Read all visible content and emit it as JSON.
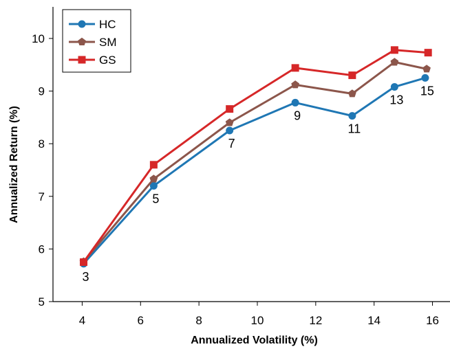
{
  "chart_data": {
    "type": "line",
    "title": "",
    "xlabel": "Annualized Volatility (%)",
    "ylabel": "Annualized Return (%)",
    "xlim": [
      3,
      16.6
    ],
    "ylim": [
      5,
      10.6
    ],
    "xticks": [
      4,
      6,
      8,
      10,
      12,
      14,
      16
    ],
    "yticks": [
      5,
      6,
      7,
      8,
      9,
      10
    ],
    "grid": false,
    "legend_position": "top-left",
    "series": [
      {
        "name": "HC",
        "color": "#1f77b4",
        "marker": "circle",
        "x": [
          4.05,
          6.45,
          9.05,
          11.3,
          13.25,
          14.7,
          15.75
        ],
        "y": [
          5.72,
          7.2,
          8.25,
          8.78,
          8.53,
          9.08,
          9.25
        ],
        "point_labels": [
          "3",
          "5",
          "7",
          "9",
          "11",
          "13",
          "15"
        ]
      },
      {
        "name": "SM",
        "color": "#8c564b",
        "marker": "pentagon",
        "x": [
          4.05,
          6.45,
          9.05,
          11.3,
          13.25,
          14.7,
          15.8
        ],
        "y": [
          5.76,
          7.33,
          8.4,
          9.12,
          8.95,
          9.55,
          9.42
        ],
        "point_labels": []
      },
      {
        "name": "GS",
        "color": "#d62728",
        "marker": "square",
        "x": [
          4.05,
          6.45,
          9.05,
          11.3,
          13.25,
          14.7,
          15.85
        ],
        "y": [
          5.75,
          7.6,
          8.66,
          9.44,
          9.3,
          9.78,
          9.73
        ],
        "point_labels": []
      }
    ]
  }
}
